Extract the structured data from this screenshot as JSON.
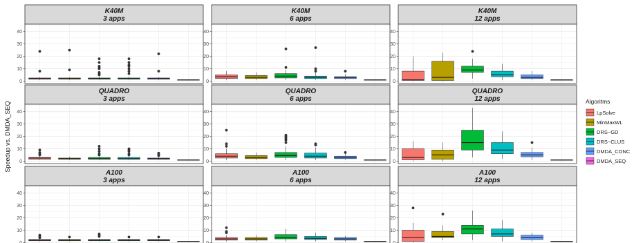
{
  "chart_data": {
    "type": "boxplot",
    "ylabel": "Speedup vs. DMDA_SEQ",
    "ylim": [
      -2,
      46
    ],
    "yticks": [
      0,
      10,
      20,
      30,
      40
    ],
    "grid": true,
    "legend": {
      "title": "Algoritms",
      "position": "right",
      "entries": [
        "LpSolve",
        "MinMaxWL",
        "DRS−GD",
        "DRS−CLUS",
        "DMDA_CONC",
        "DMDA_SEQ"
      ],
      "colors": [
        "#F8766D",
        "#B79F00",
        "#00BA38",
        "#00BFC4",
        "#619CFF",
        "#F564E3"
      ]
    },
    "panels": [
      {
        "gpu": "K40M",
        "apps": "3 apps",
        "boxes": [
          {
            "q1": 1.5,
            "median": 2.0,
            "q3": 2.5,
            "lo": 1.0,
            "hi": 3.0,
            "outliers": [
              8,
              24
            ]
          },
          {
            "q1": 1.5,
            "median": 2.0,
            "q3": 2.5,
            "lo": 1.0,
            "hi": 3.0,
            "outliers": [
              9,
              25
            ]
          },
          {
            "q1": 1.5,
            "median": 2.0,
            "q3": 2.5,
            "lo": 1.0,
            "hi": 3.5,
            "outliers": [
              5,
              6,
              7,
              10,
              11,
              12,
              15,
              18
            ]
          },
          {
            "q1": 1.5,
            "median": 2.0,
            "q3": 2.5,
            "lo": 1.0,
            "hi": 3.5,
            "outliers": [
              6,
              8,
              10,
              12,
              13,
              15,
              18
            ]
          },
          {
            "q1": 1.5,
            "median": 2.0,
            "q3": 2.5,
            "lo": 1.0,
            "hi": 3.0,
            "outliers": [
              8,
              22
            ]
          },
          {
            "q1": 1.0,
            "median": 1.0,
            "q3": 1.0,
            "lo": 1.0,
            "hi": 1.0,
            "outliers": []
          }
        ]
      },
      {
        "gpu": "K40M",
        "apps": "6 apps",
        "boxes": [
          {
            "q1": 2.0,
            "median": 3.5,
            "q3": 5.0,
            "lo": 1.0,
            "hi": 8.0,
            "outliers": []
          },
          {
            "q1": 2.0,
            "median": 3.0,
            "q3": 4.5,
            "lo": 1.0,
            "hi": 7.0,
            "outliers": []
          },
          {
            "q1": 2.5,
            "median": 4.0,
            "q3": 6.0,
            "lo": 1.0,
            "hi": 9.0,
            "outliers": [
              11,
              26
            ]
          },
          {
            "q1": 2.0,
            "median": 3.0,
            "q3": 4.0,
            "lo": 1.0,
            "hi": 7.0,
            "outliers": [
              8,
              10,
              27
            ]
          },
          {
            "q1": 2.0,
            "median": 3.0,
            "q3": 3.5,
            "lo": 1.0,
            "hi": 5.5,
            "outliers": [
              8
            ]
          },
          {
            "q1": 1.0,
            "median": 1.0,
            "q3": 1.0,
            "lo": 1.0,
            "hi": 1.0,
            "outliers": []
          }
        ]
      },
      {
        "gpu": "K40M",
        "apps": "12 apps",
        "boxes": [
          {
            "q1": 0.5,
            "median": 1.0,
            "q3": 8.0,
            "lo": 0.0,
            "hi": 20.0,
            "outliers": []
          },
          {
            "q1": 0.5,
            "median": 3.0,
            "q3": 16.0,
            "lo": 0.0,
            "hi": 23.0,
            "outliers": []
          },
          {
            "q1": 7.0,
            "median": 9.0,
            "q3": 12.0,
            "lo": 2.0,
            "hi": 18.0,
            "outliers": [
              24
            ]
          },
          {
            "q1": 3.5,
            "median": 5.0,
            "q3": 8.0,
            "lo": 1.0,
            "hi": 14.0,
            "outliers": []
          },
          {
            "q1": 2.0,
            "median": 3.0,
            "q3": 5.0,
            "lo": 1.0,
            "hi": 8.0,
            "outliers": []
          },
          {
            "q1": 1.0,
            "median": 1.0,
            "q3": 1.0,
            "lo": 1.0,
            "hi": 1.0,
            "outliers": []
          }
        ]
      },
      {
        "gpu": "QUADRO",
        "apps": "3 apps",
        "boxes": [
          {
            "q1": 1.5,
            "median": 2.5,
            "q3": 3.0,
            "lo": 1.0,
            "hi": 4.0,
            "outliers": [
              5,
              6,
              7,
              9
            ]
          },
          {
            "q1": 1.5,
            "median": 2.0,
            "q3": 2.5,
            "lo": 1.0,
            "hi": 3.5,
            "outliers": []
          },
          {
            "q1": 1.5,
            "median": 2.0,
            "q3": 3.0,
            "lo": 1.0,
            "hi": 4.0,
            "outliers": [
              5,
              6,
              8,
              10,
              12
            ]
          },
          {
            "q1": 1.5,
            "median": 2.0,
            "q3": 3.0,
            "lo": 1.0,
            "hi": 4.0,
            "outliers": [
              5,
              6,
              8,
              9,
              10
            ]
          },
          {
            "q1": 1.5,
            "median": 2.0,
            "q3": 2.5,
            "lo": 1.0,
            "hi": 3.5,
            "outliers": [
              4.5,
              5.5,
              6.5
            ]
          },
          {
            "q1": 1.0,
            "median": 1.0,
            "q3": 1.0,
            "lo": 1.0,
            "hi": 1.0,
            "outliers": []
          }
        ]
      },
      {
        "gpu": "QUADRO",
        "apps": "6 apps",
        "boxes": [
          {
            "q1": 2.5,
            "median": 4.0,
            "q3": 6.0,
            "lo": 1.0,
            "hi": 10.0,
            "outliers": [
              12,
              14,
              25
            ]
          },
          {
            "q1": 2.0,
            "median": 3.0,
            "q3": 4.5,
            "lo": 1.0,
            "hi": 7.0,
            "outliers": []
          },
          {
            "q1": 3.0,
            "median": 4.5,
            "q3": 7.0,
            "lo": 1.0,
            "hi": 12.0,
            "outliers": [
              15,
              17,
              18,
              19,
              20,
              21
            ]
          },
          {
            "q1": 2.5,
            "median": 4.0,
            "q3": 6.5,
            "lo": 1.0,
            "hi": 11.0,
            "outliers": [
              13,
              14
            ]
          },
          {
            "q1": 2.0,
            "median": 3.0,
            "q3": 4.0,
            "lo": 1.0,
            "hi": 6.0,
            "outliers": [
              7
            ]
          },
          {
            "q1": 1.0,
            "median": 1.0,
            "q3": 1.0,
            "lo": 1.0,
            "hi": 1.0,
            "outliers": []
          }
        ]
      },
      {
        "gpu": "QUADRO",
        "apps": "12 apps",
        "boxes": [
          {
            "q1": 1.0,
            "median": 3.0,
            "q3": 10.0,
            "lo": 0.0,
            "hi": 16.0,
            "outliers": []
          },
          {
            "q1": 1.5,
            "median": 5.0,
            "q3": 9.0,
            "lo": 0.0,
            "hi": 15.0,
            "outliers": []
          },
          {
            "q1": 9.0,
            "median": 15.0,
            "q3": 25.0,
            "lo": 3.0,
            "hi": 43.0,
            "outliers": []
          },
          {
            "q1": 6.0,
            "median": 9.0,
            "q3": 15.0,
            "lo": 2.0,
            "hi": 24.0,
            "outliers": []
          },
          {
            "q1": 3.5,
            "median": 5.0,
            "q3": 7.0,
            "lo": 1.0,
            "hi": 11.0,
            "outliers": [
              15
            ]
          },
          {
            "q1": 1.0,
            "median": 1.0,
            "q3": 1.0,
            "lo": 1.0,
            "hi": 1.0,
            "outliers": []
          }
        ]
      },
      {
        "gpu": "A100",
        "apps": "3 apps",
        "boxes": [
          {
            "q1": 1.5,
            "median": 2.0,
            "q3": 2.5,
            "lo": 1.0,
            "hi": 3.0,
            "outliers": [
              4,
              5,
              6
            ]
          },
          {
            "q1": 1.5,
            "median": 2.0,
            "q3": 2.5,
            "lo": 1.0,
            "hi": 3.0,
            "outliers": [
              4.5
            ]
          },
          {
            "q1": 1.5,
            "median": 2.0,
            "q3": 2.5,
            "lo": 1.0,
            "hi": 3.0,
            "outliers": [
              5,
              6,
              7
            ]
          },
          {
            "q1": 1.5,
            "median": 2.0,
            "q3": 2.5,
            "lo": 1.0,
            "hi": 3.0,
            "outliers": [
              4.5
            ]
          },
          {
            "q1": 1.5,
            "median": 2.0,
            "q3": 2.5,
            "lo": 1.0,
            "hi": 3.0,
            "outliers": [
              4.5
            ]
          },
          {
            "q1": 1.0,
            "median": 1.0,
            "q3": 1.0,
            "lo": 1.0,
            "hi": 1.0,
            "outliers": []
          }
        ]
      },
      {
        "gpu": "A100",
        "apps": "6 apps",
        "boxes": [
          {
            "q1": 2.0,
            "median": 3.0,
            "q3": 4.0,
            "lo": 1.0,
            "hi": 6.0,
            "outliers": [
              8,
              9,
              12
            ]
          },
          {
            "q1": 2.0,
            "median": 3.0,
            "q3": 4.0,
            "lo": 1.0,
            "hi": 6.0,
            "outliers": []
          },
          {
            "q1": 3.0,
            "median": 4.0,
            "q3": 6.5,
            "lo": 1.0,
            "hi": 11.0,
            "outliers": []
          },
          {
            "q1": 2.5,
            "median": 3.5,
            "q3": 5.0,
            "lo": 1.0,
            "hi": 8.0,
            "outliers": []
          },
          {
            "q1": 2.0,
            "median": 3.0,
            "q3": 4.0,
            "lo": 1.0,
            "hi": 5.5,
            "outliers": []
          },
          {
            "q1": 1.0,
            "median": 1.0,
            "q3": 1.0,
            "lo": 1.0,
            "hi": 1.0,
            "outliers": []
          }
        ]
      },
      {
        "gpu": "A100",
        "apps": "12 apps",
        "boxes": [
          {
            "q1": 1.0,
            "median": 4.0,
            "q3": 10.0,
            "lo": 0.0,
            "hi": 16.0,
            "outliers": [
              28
            ]
          },
          {
            "q1": 4.0,
            "median": 5.0,
            "q3": 9.0,
            "lo": 2.0,
            "hi": 14.0,
            "outliers": [
              23
            ]
          },
          {
            "q1": 7.0,
            "median": 11.0,
            "q3": 14.0,
            "lo": 2.0,
            "hi": 26.0,
            "outliers": []
          },
          {
            "q1": 5.0,
            "median": 7.0,
            "q3": 11.0,
            "lo": 1.0,
            "hi": 18.0,
            "outliers": []
          },
          {
            "q1": 2.5,
            "median": 4.0,
            "q3": 6.0,
            "lo": 1.0,
            "hi": 8.0,
            "outliers": []
          },
          {
            "q1": 1.0,
            "median": 1.0,
            "q3": 1.0,
            "lo": 1.0,
            "hi": 1.0,
            "outliers": []
          }
        ]
      }
    ]
  }
}
